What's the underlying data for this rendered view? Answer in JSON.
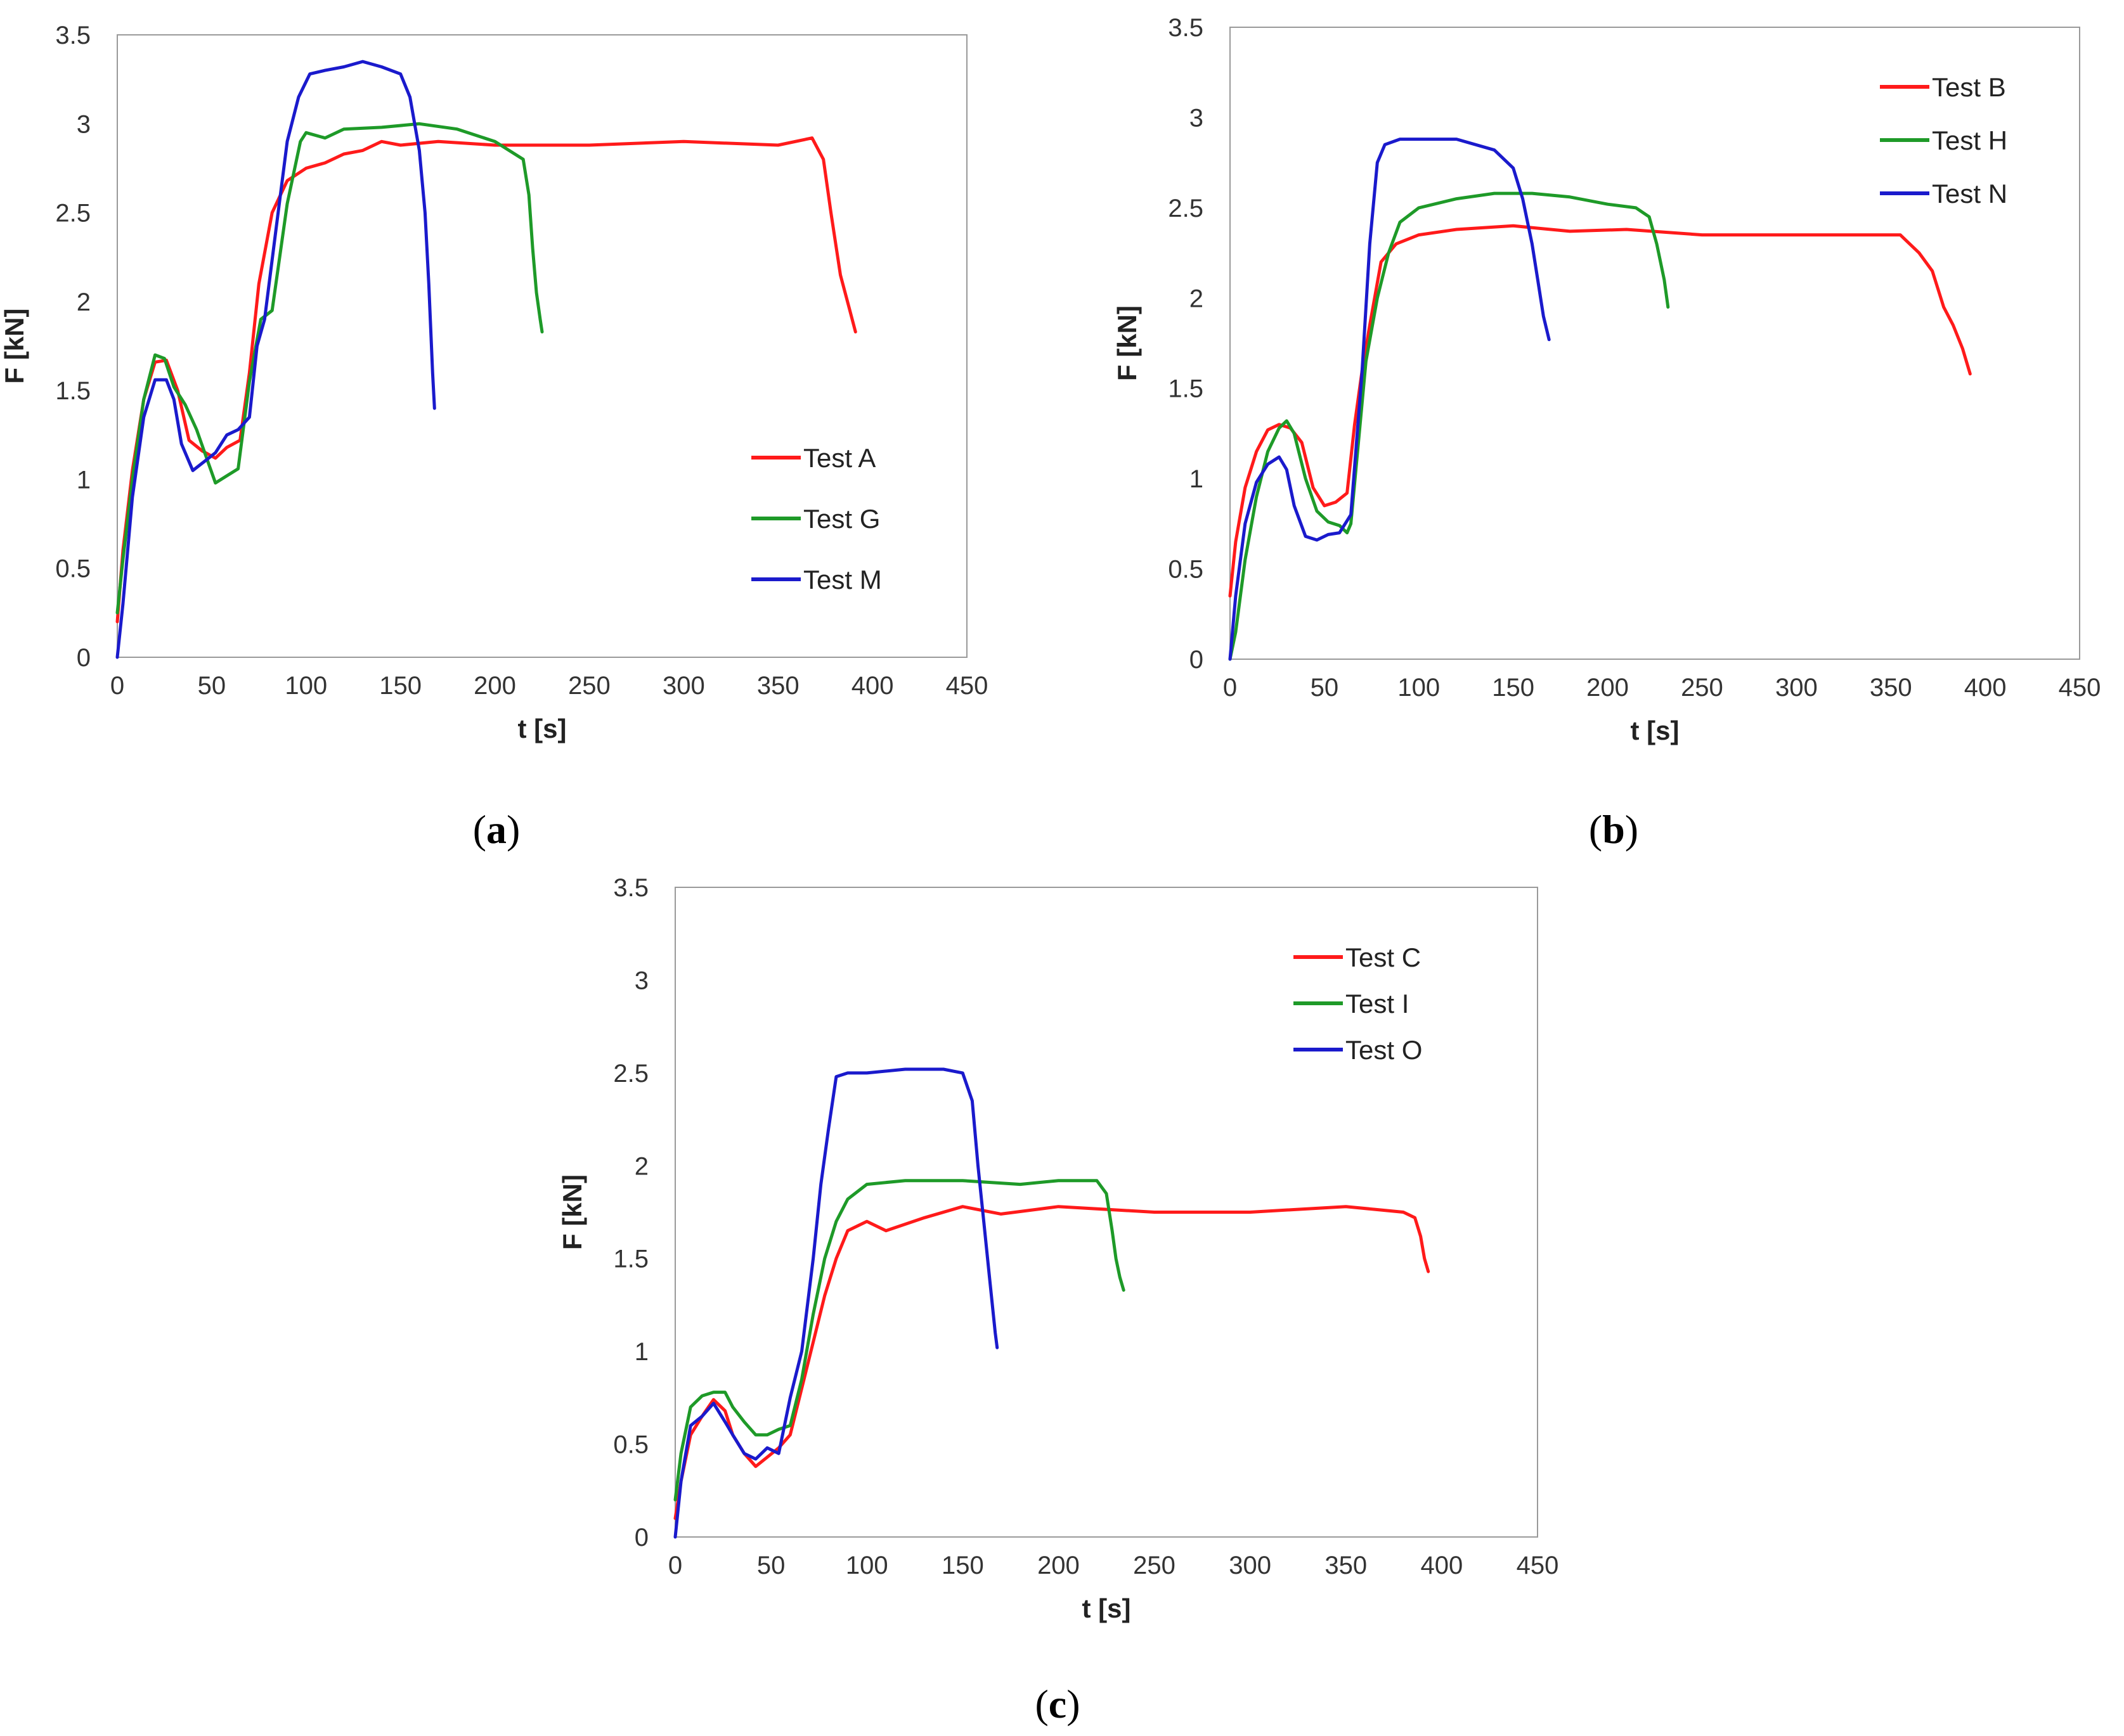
{
  "colors": {
    "red": "#ff1a1a",
    "green": "#1e9a28",
    "blue": "#1a1acc"
  },
  "chart_data": [
    {
      "id": "a",
      "type": "line",
      "panel_label": "a",
      "xlabel": "t [s]",
      "ylabel": "F [kN]",
      "xlim": [
        0,
        450
      ],
      "ylim": [
        0,
        3.5
      ],
      "xticks": [
        "0",
        "50",
        "100",
        "150",
        "200",
        "250",
        "300",
        "350",
        "400",
        "450"
      ],
      "yticks": [
        "0",
        "0.5",
        "1",
        "1.5",
        "2",
        "2.5",
        "3",
        "3.5"
      ],
      "grid": false,
      "legend_position": "center-right",
      "series": [
        {
          "name": "Test A",
          "color": "red",
          "x": [
            0,
            3,
            8,
            14,
            20,
            26,
            32,
            38,
            45,
            52,
            58,
            65,
            70,
            75,
            82,
            90,
            100,
            110,
            120,
            130,
            140,
            150,
            170,
            200,
            250,
            300,
            350,
            368,
            374,
            378,
            383,
            388,
            391
          ],
          "y": [
            0.2,
            0.6,
            1.05,
            1.45,
            1.66,
            1.67,
            1.5,
            1.22,
            1.16,
            1.12,
            1.18,
            1.22,
            1.6,
            2.1,
            2.5,
            2.68,
            2.75,
            2.78,
            2.83,
            2.85,
            2.9,
            2.88,
            2.9,
            2.88,
            2.88,
            2.9,
            2.88,
            2.92,
            2.8,
            2.5,
            2.15,
            1.95,
            1.83
          ]
        },
        {
          "name": "Test G",
          "color": "green",
          "x": [
            0,
            3,
            8,
            14,
            20,
            25,
            30,
            36,
            42,
            48,
            52,
            58,
            64,
            70,
            76,
            82,
            90,
            97,
            100,
            110,
            120,
            140,
            160,
            180,
            200,
            215,
            218,
            220,
            222,
            224,
            225
          ],
          "y": [
            0.25,
            0.55,
            1.0,
            1.45,
            1.7,
            1.68,
            1.52,
            1.42,
            1.28,
            1.1,
            0.98,
            1.02,
            1.06,
            1.55,
            1.9,
            1.95,
            2.55,
            2.9,
            2.95,
            2.92,
            2.97,
            2.98,
            3.0,
            2.97,
            2.9,
            2.8,
            2.6,
            2.3,
            2.05,
            1.9,
            1.83
          ]
        },
        {
          "name": "Test M",
          "color": "blue",
          "x": [
            0,
            3,
            8,
            14,
            20,
            26,
            30,
            34,
            40,
            46,
            52,
            58,
            64,
            70,
            74,
            78,
            84,
            90,
            96,
            102,
            110,
            120,
            130,
            140,
            150,
            155,
            160,
            163,
            165,
            167,
            168
          ],
          "y": [
            0.0,
            0.3,
            0.9,
            1.35,
            1.56,
            1.56,
            1.45,
            1.2,
            1.05,
            1.1,
            1.15,
            1.25,
            1.28,
            1.35,
            1.75,
            1.9,
            2.4,
            2.9,
            3.15,
            3.28,
            3.3,
            3.32,
            3.35,
            3.32,
            3.28,
            3.15,
            2.85,
            2.5,
            2.1,
            1.6,
            1.4
          ]
        }
      ]
    },
    {
      "id": "b",
      "type": "line",
      "panel_label": "b",
      "xlabel": "t [s]",
      "ylabel": "F [kN]",
      "xlim": [
        0,
        450
      ],
      "ylim": [
        0,
        3.5
      ],
      "xticks": [
        "0",
        "50",
        "100",
        "150",
        "200",
        "250",
        "300",
        "350",
        "400",
        "450"
      ],
      "yticks": [
        "0",
        "0.5",
        "1",
        "1.5",
        "2",
        "2.5",
        "3",
        "3.5"
      ],
      "grid": false,
      "legend_position": "top-right",
      "series": [
        {
          "name": "Test B",
          "color": "red",
          "x": [
            0,
            3,
            8,
            14,
            20,
            26,
            32,
            38,
            44,
            50,
            56,
            62,
            66,
            70,
            74,
            80,
            88,
            100,
            120,
            150,
            180,
            210,
            250,
            300,
            340,
            355,
            365,
            372,
            378,
            383,
            388,
            392
          ],
          "y": [
            0.35,
            0.65,
            0.95,
            1.15,
            1.27,
            1.3,
            1.28,
            1.2,
            0.95,
            0.85,
            0.87,
            0.92,
            1.3,
            1.6,
            1.85,
            2.2,
            2.3,
            2.35,
            2.38,
            2.4,
            2.37,
            2.38,
            2.35,
            2.35,
            2.35,
            2.35,
            2.25,
            2.15,
            1.95,
            1.85,
            1.72,
            1.58
          ]
        },
        {
          "name": "Test H",
          "color": "green",
          "x": [
            0,
            3,
            8,
            14,
            20,
            26,
            30,
            34,
            40,
            46,
            52,
            58,
            62,
            64,
            68,
            72,
            78,
            84,
            90,
            100,
            120,
            140,
            160,
            180,
            200,
            215,
            222,
            226,
            230,
            232
          ],
          "y": [
            0.0,
            0.15,
            0.55,
            0.9,
            1.15,
            1.28,
            1.32,
            1.25,
            1.0,
            0.82,
            0.76,
            0.74,
            0.7,
            0.75,
            1.2,
            1.65,
            2.0,
            2.25,
            2.42,
            2.5,
            2.55,
            2.58,
            2.58,
            2.56,
            2.52,
            2.5,
            2.45,
            2.3,
            2.1,
            1.95
          ]
        },
        {
          "name": "Test N",
          "color": "blue",
          "x": [
            0,
            3,
            8,
            14,
            20,
            26,
            30,
            34,
            40,
            46,
            52,
            58,
            64,
            70,
            74,
            78,
            82,
            90,
            100,
            120,
            140,
            150,
            155,
            160,
            163,
            166,
            169
          ],
          "y": [
            0.0,
            0.35,
            0.75,
            0.98,
            1.08,
            1.12,
            1.05,
            0.85,
            0.68,
            0.66,
            0.69,
            0.7,
            0.8,
            1.6,
            2.3,
            2.75,
            2.85,
            2.88,
            2.88,
            2.88,
            2.82,
            2.72,
            2.55,
            2.3,
            2.1,
            1.9,
            1.77
          ]
        }
      ]
    },
    {
      "id": "c",
      "type": "line",
      "panel_label": "c",
      "xlabel": "t [s]",
      "ylabel": "F [kN]",
      "xlim": [
        0,
        450
      ],
      "ylim": [
        0,
        3.5
      ],
      "xticks": [
        "0",
        "50",
        "100",
        "150",
        "200",
        "250",
        "300",
        "350",
        "400",
        "450"
      ],
      "yticks": [
        "0",
        "0.5",
        "1",
        "1.5",
        "2",
        "2.5",
        "3",
        "3.5"
      ],
      "grid": false,
      "legend_position": "top-right",
      "series": [
        {
          "name": "Test C",
          "color": "red",
          "x": [
            0,
            3,
            8,
            14,
            20,
            26,
            30,
            36,
            42,
            48,
            54,
            60,
            66,
            72,
            78,
            84,
            90,
            100,
            110,
            130,
            150,
            170,
            200,
            250,
            300,
            350,
            380,
            386,
            389,
            391,
            393
          ],
          "y": [
            0.1,
            0.3,
            0.55,
            0.65,
            0.74,
            0.68,
            0.55,
            0.45,
            0.38,
            0.43,
            0.48,
            0.55,
            0.8,
            1.05,
            1.3,
            1.5,
            1.65,
            1.7,
            1.65,
            1.72,
            1.78,
            1.74,
            1.78,
            1.75,
            1.75,
            1.78,
            1.75,
            1.72,
            1.62,
            1.5,
            1.43
          ]
        },
        {
          "name": "Test I",
          "color": "green",
          "x": [
            0,
            3,
            8,
            14,
            20,
            26,
            30,
            36,
            42,
            48,
            54,
            60,
            66,
            72,
            78,
            84,
            90,
            100,
            120,
            150,
            180,
            200,
            220,
            225,
            228,
            230,
            232,
            234
          ],
          "y": [
            0.2,
            0.45,
            0.7,
            0.76,
            0.78,
            0.78,
            0.7,
            0.62,
            0.55,
            0.55,
            0.58,
            0.6,
            0.85,
            1.2,
            1.5,
            1.7,
            1.82,
            1.9,
            1.92,
            1.92,
            1.9,
            1.92,
            1.92,
            1.85,
            1.65,
            1.5,
            1.4,
            1.33
          ]
        },
        {
          "name": "Test O",
          "color": "blue",
          "x": [
            0,
            3,
            8,
            14,
            20,
            26,
            30,
            36,
            42,
            48,
            54,
            60,
            66,
            72,
            76,
            80,
            84,
            90,
            100,
            120,
            140,
            150,
            155,
            158,
            161,
            164,
            167,
            168
          ],
          "y": [
            0.0,
            0.3,
            0.6,
            0.65,
            0.72,
            0.62,
            0.55,
            0.45,
            0.42,
            0.48,
            0.45,
            0.75,
            1.0,
            1.5,
            1.9,
            2.2,
            2.48,
            2.5,
            2.5,
            2.52,
            2.52,
            2.5,
            2.35,
            2.0,
            1.7,
            1.4,
            1.1,
            1.02
          ]
        }
      ]
    }
  ]
}
